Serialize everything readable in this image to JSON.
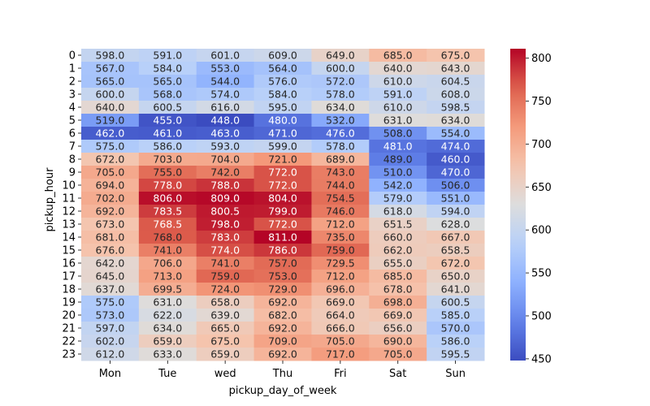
{
  "chart_data": {
    "type": "heatmap",
    "xlabel": "pickup_day_of_week",
    "ylabel": "pickup_hour",
    "x_categories": [
      "Mon",
      "Tue",
      "wed",
      "Thu",
      "Fri",
      "Sat",
      "Sun"
    ],
    "y_categories": [
      "0",
      "1",
      "2",
      "3",
      "4",
      "5",
      "6",
      "7",
      "8",
      "9",
      "10",
      "11",
      "12",
      "13",
      "14",
      "15",
      "16",
      "17",
      "18",
      "19",
      "20",
      "21",
      "22",
      "23"
    ],
    "values": [
      [
        598.0,
        591.0,
        601.0,
        609.0,
        649.0,
        685.0,
        675.0
      ],
      [
        567.0,
        584.0,
        553.0,
        564.0,
        600.0,
        640.0,
        643.0
      ],
      [
        565.0,
        565.0,
        544.0,
        576.0,
        572.0,
        610.0,
        604.5
      ],
      [
        600.0,
        568.0,
        574.0,
        584.0,
        578.0,
        591.0,
        608.0
      ],
      [
        640.0,
        600.5,
        616.0,
        595.0,
        634.0,
        610.0,
        598.5
      ],
      [
        519.0,
        455.0,
        448.0,
        480.0,
        532.0,
        631.0,
        634.0
      ],
      [
        462.0,
        461.0,
        463.0,
        471.0,
        476.0,
        508.0,
        554.0
      ],
      [
        575.0,
        586.0,
        593.0,
        599.0,
        578.0,
        481.0,
        474.0
      ],
      [
        672.0,
        703.0,
        704.0,
        721.0,
        689.0,
        489.0,
        460.0
      ],
      [
        705.0,
        755.0,
        742.0,
        772.0,
        743.0,
        510.0,
        470.0
      ],
      [
        694.0,
        778.0,
        788.0,
        772.0,
        744.0,
        542.0,
        506.0
      ],
      [
        702.0,
        806.0,
        809.0,
        804.0,
        754.5,
        579.0,
        551.0
      ],
      [
        692.0,
        783.5,
        800.5,
        799.0,
        746.0,
        618.0,
        594.0
      ],
      [
        673.0,
        768.5,
        798.0,
        772.0,
        712.0,
        651.5,
        628.0
      ],
      [
        681.0,
        768.0,
        783.0,
        811.0,
        735.0,
        660.0,
        667.0
      ],
      [
        676.0,
        741.0,
        774.0,
        786.0,
        759.0,
        662.0,
        658.5
      ],
      [
        642.0,
        706.0,
        741.0,
        757.0,
        729.5,
        655.0,
        672.0
      ],
      [
        645.0,
        713.0,
        759.0,
        753.0,
        712.0,
        685.0,
        650.0
      ],
      [
        637.0,
        699.5,
        724.0,
        729.0,
        696.0,
        678.0,
        641.0
      ],
      [
        575.0,
        631.0,
        658.0,
        692.0,
        669.0,
        698.0,
        600.5
      ],
      [
        573.0,
        622.0,
        639.0,
        682.0,
        664.0,
        669.0,
        585.0
      ],
      [
        597.0,
        634.0,
        665.0,
        692.0,
        666.0,
        656.0,
        570.0
      ],
      [
        602.0,
        659.0,
        675.0,
        709.0,
        705.0,
        690.0,
        586.0
      ],
      [
        612.0,
        633.0,
        659.0,
        692.0,
        717.0,
        705.0,
        595.5
      ]
    ],
    "value_format": "one decimal",
    "colormap": "coolwarm",
    "colorbar": {
      "range": [
        448,
        811
      ],
      "ticks": [
        450,
        500,
        550,
        600,
        650,
        700,
        750,
        800
      ],
      "placement": "right"
    },
    "grid": false,
    "legend": "none"
  }
}
